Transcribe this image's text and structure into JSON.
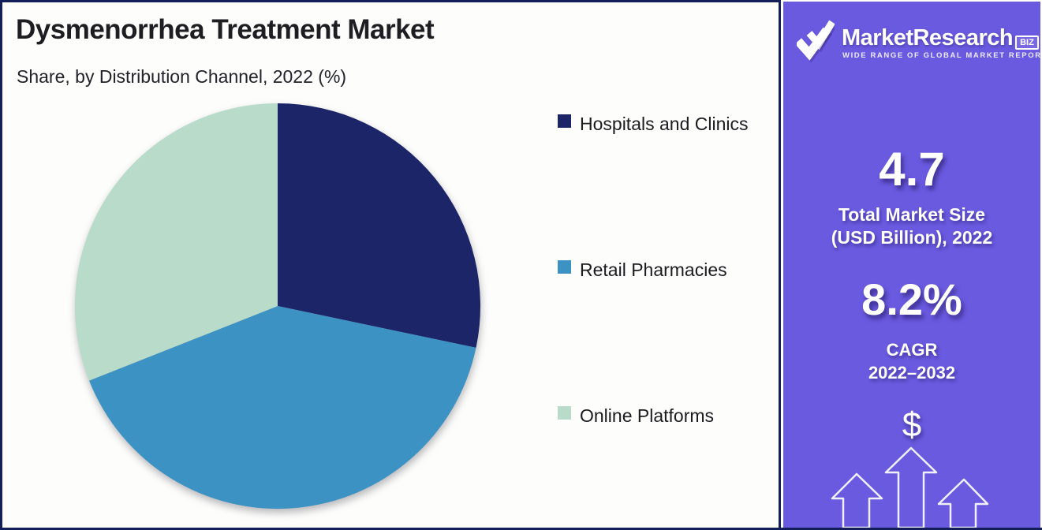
{
  "header": {
    "title": "Dysmenorrhea Treatment Market",
    "subtitle": "Share, by Distribution Channel, 2022 (%)"
  },
  "chart_data": {
    "type": "pie",
    "title": "Dysmenorrhea Treatment Market",
    "subtitle": "Share, by Distribution Channel, 2022 (%)",
    "labels": [
      "Hospitals and Clinics",
      "Retail Pharmacies",
      "Online Platforms"
    ],
    "values": [
      28.3,
      40.7,
      31.0
    ],
    "unit": "%",
    "colors": [
      "#1b2567",
      "#3d92c4",
      "#b8dcc9"
    ],
    "start_angle_deg": 0,
    "direction": "clockwise",
    "legend_position": "right",
    "data_labels_shown": false
  },
  "sidebar": {
    "background": "#6a5ae0",
    "logo": {
      "brand": "MarketResearch",
      "suffix": "BIZ",
      "tagline": "WIDE RANGE OF GLOBAL MARKET REPORTS"
    },
    "stats": [
      {
        "value": "4.7",
        "label_line1": "Total Market Size",
        "label_line2": "(USD Billion), 2022"
      },
      {
        "value": "8.2%",
        "label_line1": "CAGR",
        "label_line2": "2022–2032"
      }
    ],
    "dollar_symbol": "$"
  },
  "colors": {
    "accent_purple": "#6a5ae0",
    "navy": "#1b2567",
    "blue": "#3d92c4",
    "mint": "#b8dcc9",
    "frame_border": "#141e5a",
    "text_dark": "#1d1d22",
    "white": "#ffffff"
  }
}
